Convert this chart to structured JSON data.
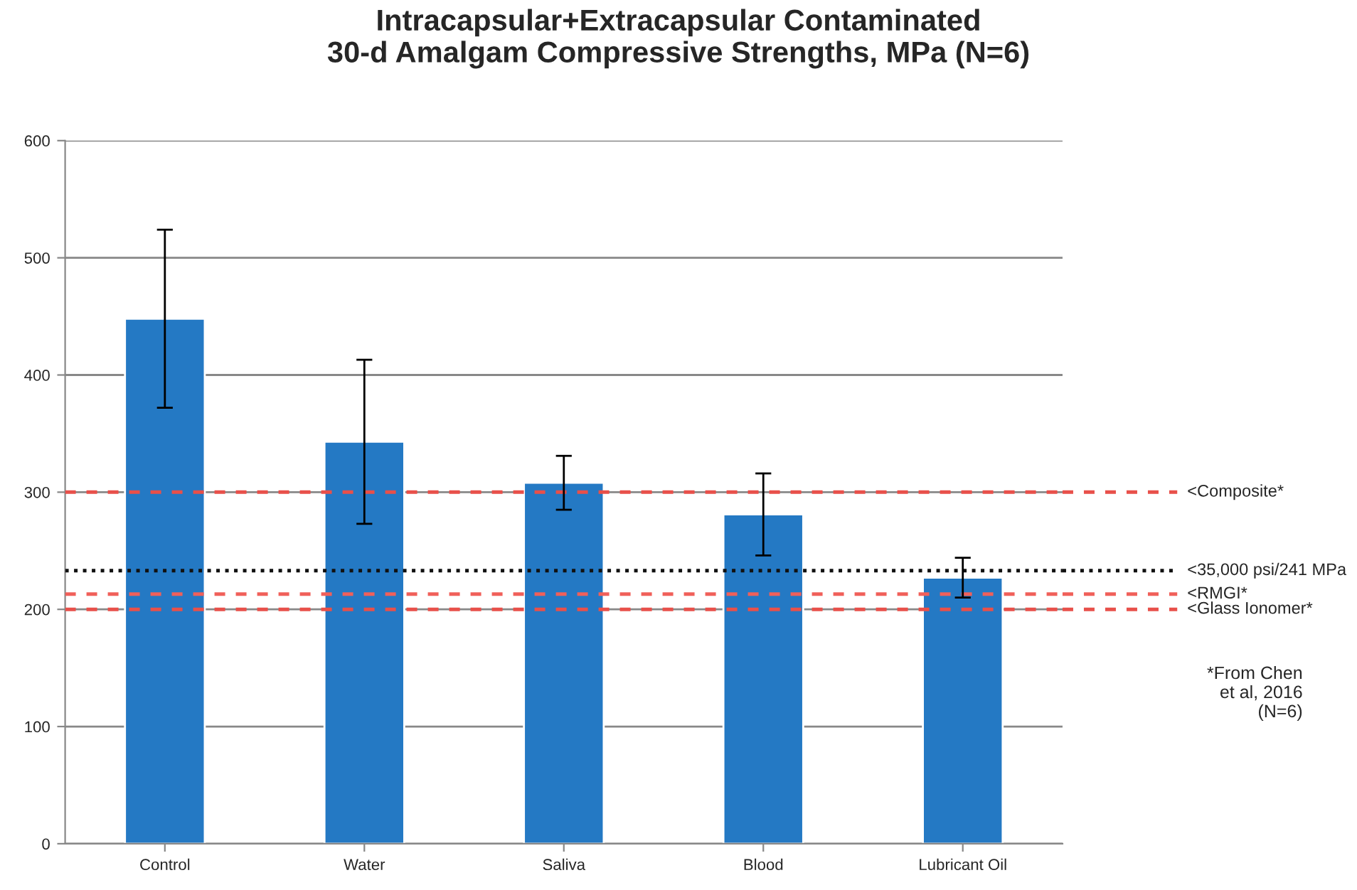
{
  "chart_data": {
    "type": "bar",
    "title": "Intracapsular+Extracapsular Contaminated\n30-d Amalgam Compressive Strengths, MPa (N=6)",
    "categories": [
      "Control",
      "Water",
      "Saliva",
      "Blood",
      "Lubricant Oil"
    ],
    "values": [
      448,
      343,
      308,
      281,
      227
    ],
    "errors": [
      76,
      70,
      23,
      35,
      17
    ],
    "color": "#2479c4",
    "ylim": [
      0,
      600
    ],
    "yticks": [
      0,
      100,
      200,
      300,
      400,
      500,
      600
    ],
    "grid": "y",
    "ref_lines": [
      {
        "axis": "y",
        "value": 300,
        "label": "<Composite*",
        "color": "#e8504a",
        "line_style": "dashed"
      },
      {
        "axis": "y",
        "value": 233,
        "label": "<35,000 psi/241 MPa",
        "color": "#111111",
        "line_style": "dotted"
      },
      {
        "axis": "y",
        "value": 213,
        "label": "<RMGI*",
        "color": "#f0605a",
        "line_style": "dashed"
      },
      {
        "axis": "y",
        "value": 200,
        "label": "<Glass Ionomer*",
        "color": "#e8504a",
        "line_style": "dashed"
      }
    ],
    "annotations": [
      "*From Chen\net al, 2016\n(N=6)"
    ]
  }
}
